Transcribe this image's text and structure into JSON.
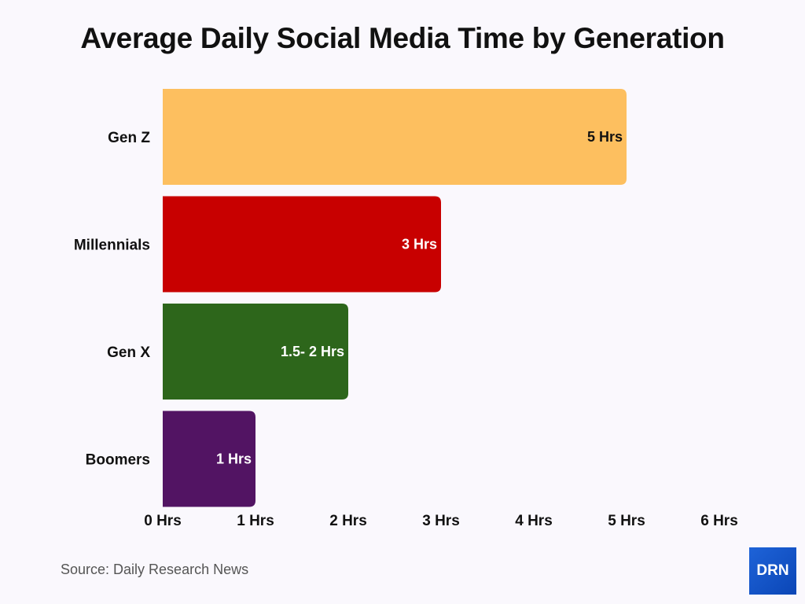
{
  "chart_data": {
    "type": "bar",
    "orientation": "horizontal",
    "title": "Average Daily Social Media Time by Generation",
    "categories": [
      "Gen Z",
      "Millennials",
      "Gen X",
      "Boomers"
    ],
    "values": [
      5,
      3,
      2,
      1
    ],
    "data_labels": [
      "5 Hrs",
      "3 Hrs",
      "1.5- 2 Hrs",
      "1 Hrs"
    ],
    "colors": [
      "#fdbf5f",
      "#c80000",
      "#2d661b",
      "#521463"
    ],
    "xlim": [
      0,
      6
    ],
    "x_ticks": [
      "0 Hrs",
      "1 Hrs",
      "2 Hrs",
      "3 Hrs",
      "4 Hrs",
      "5 Hrs",
      "6 Hrs"
    ],
    "grid": false,
    "legend": "none"
  },
  "source": "Source: Daily Research News",
  "logo_text": "DRN"
}
